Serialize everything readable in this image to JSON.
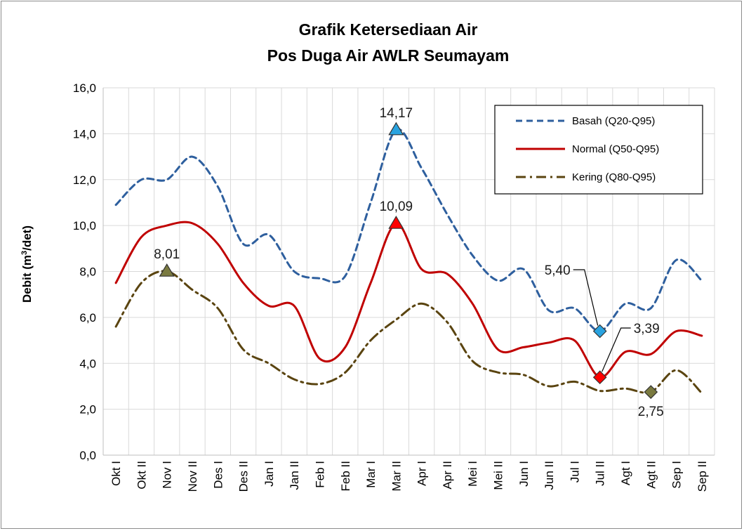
{
  "chart_data": {
    "type": "line",
    "title": "Grafik Ketersediaan Air",
    "subtitle": "Pos Duga Air AWLR Seumayam",
    "ylabel": "Debit (m³/det)",
    "xlabel": "",
    "ylim": [
      0,
      16
    ],
    "ytick_step": 2,
    "ytick_labels": [
      "0,0",
      "2,0",
      "4,0",
      "6,0",
      "8,0",
      "10,0",
      "12,0",
      "14,0",
      "16,0"
    ],
    "grid": true,
    "legend_position": "top-right",
    "categories": [
      "Okt I",
      "Okt II",
      "Nov I",
      "Nov II",
      "Des I",
      "Des II",
      "Jan I",
      "Jan II",
      "Feb I",
      "Feb II",
      "Mar I",
      "Mar II",
      "Apr I",
      "Apr II",
      "Mei I",
      "Mei II",
      "Jun I",
      "Jun II",
      "Jul I",
      "Jul II",
      "Agt I",
      "Agt II",
      "Sep I",
      "Sep II"
    ],
    "series": [
      {
        "name": "Basah (Q20-Q95)",
        "color": "#2e5f9e",
        "style": "dashed",
        "values": [
          10.9,
          12.0,
          12.0,
          13.0,
          11.7,
          9.2,
          9.6,
          8.0,
          7.7,
          7.8,
          11.0,
          14.17,
          12.5,
          10.5,
          8.7,
          7.6,
          8.1,
          6.3,
          6.4,
          5.4,
          6.6,
          6.4,
          8.5,
          7.6
        ]
      },
      {
        "name": "Normal (Q50-Q95)",
        "color": "#c00000",
        "style": "solid",
        "values": [
          7.5,
          9.5,
          10.0,
          10.1,
          9.2,
          7.5,
          6.5,
          6.5,
          4.2,
          4.7,
          7.5,
          10.09,
          8.1,
          7.9,
          6.6,
          4.6,
          4.7,
          4.9,
          5.0,
          3.39,
          4.5,
          4.4,
          5.4,
          5.2
        ]
      },
      {
        "name": "Kering (Q80-Q95)",
        "color": "#5a4410",
        "style": "dashdot",
        "values": [
          5.6,
          7.5,
          8.01,
          7.2,
          6.4,
          4.6,
          4.0,
          3.3,
          3.1,
          3.6,
          5.0,
          5.9,
          6.6,
          5.8,
          4.1,
          3.6,
          3.5,
          3.0,
          3.2,
          2.8,
          2.9,
          2.75,
          3.7,
          2.7
        ]
      }
    ],
    "annotations": [
      {
        "text": "14,17",
        "series": 0,
        "index": 11,
        "marker": "triangle",
        "color": "#29a3e0"
      },
      {
        "text": "10,09",
        "series": 1,
        "index": 11,
        "marker": "triangle",
        "color": "#ff0000"
      },
      {
        "text": "8,01",
        "series": 2,
        "index": 2,
        "marker": "triangle",
        "color": "#7a7a40"
      },
      {
        "text": "5,40",
        "series": 0,
        "index": 19,
        "marker": "diamond",
        "color": "#29a3e0"
      },
      {
        "text": "3,39",
        "series": 1,
        "index": 19,
        "marker": "diamond",
        "color": "#ff0000"
      },
      {
        "text": "2,75",
        "series": 2,
        "index": 21,
        "marker": "diamond",
        "color": "#7a7a40"
      }
    ]
  }
}
